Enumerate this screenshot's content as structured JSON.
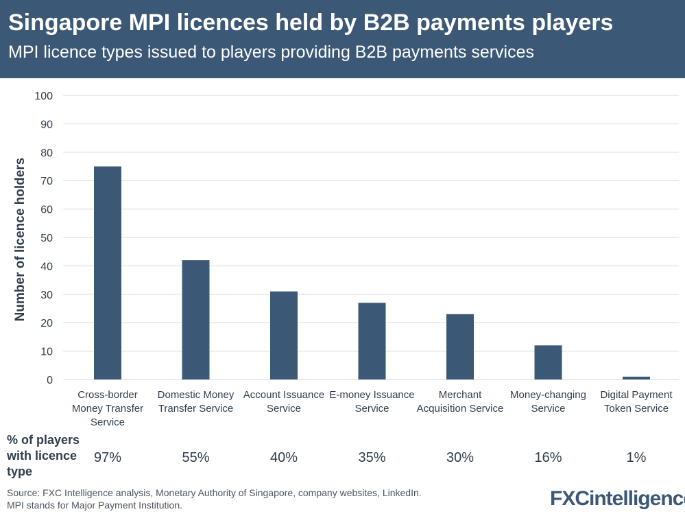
{
  "header": {
    "title": "Singapore MPI licences held by B2B payments players",
    "subtitle": "MPI licence types issued to players providing B2B payments services"
  },
  "chart_data": {
    "type": "bar",
    "categories": [
      [
        "Cross-border",
        "Money Transfer",
        "Service"
      ],
      [
        "Domestic Money",
        "Transfer Service"
      ],
      [
        "Account Issuance",
        "Service"
      ],
      [
        "E-money Issuance",
        "Service"
      ],
      [
        "Merchant",
        "Acquisition Service"
      ],
      [
        "Money-changing",
        "Service"
      ],
      [
        "Digital Payment",
        "Token Service"
      ]
    ],
    "values": [
      75,
      42,
      31,
      27,
      23,
      12,
      1
    ],
    "ylabel": "Number of licence holders",
    "ylim": [
      0,
      100
    ],
    "yticks": [
      0,
      10,
      20,
      30,
      40,
      50,
      60,
      70,
      80,
      90,
      100
    ],
    "grid": true,
    "bar_color": "#3b5876"
  },
  "pct_row": {
    "label": [
      "% of players",
      "with licence",
      "type"
    ],
    "values": [
      "97%",
      "55%",
      "40%",
      "35%",
      "30%",
      "16%",
      "1%"
    ]
  },
  "footer": {
    "source": "Source: FXC Intelligence analysis, Monetary Authority of Singapore, company websites, LinkedIn.",
    "note": "MPI stands for Major Payment Institution.",
    "logo": "FXCintelligence"
  }
}
